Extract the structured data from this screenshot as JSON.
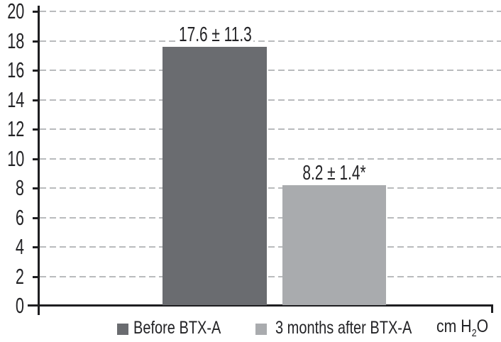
{
  "chart_data": {
    "type": "bar",
    "title": "",
    "xlabel": "",
    "ylabel": "",
    "unit_label": "cm H2O",
    "unit": {
      "prefix": "cm H",
      "sub": "2",
      "suffix": "O"
    },
    "ylim": [
      0,
      20
    ],
    "ytick_step": 2,
    "yticks": [
      0,
      2,
      4,
      6,
      8,
      10,
      12,
      14,
      16,
      18,
      20
    ],
    "grid": "horizontal dashed, on",
    "legend_position": "bottom",
    "categories": [
      "Before BTX-A",
      "3 months after BTX-A"
    ],
    "series": [
      {
        "name": "Before BTX-A",
        "value": 17.6,
        "sd": 11.3,
        "annotation": "17.6 ± 11.3",
        "color": "#6a6c70"
      },
      {
        "name": "3 months after BTX-A",
        "value": 8.2,
        "sd": 1.4,
        "annotation": "8.2 ± 1.4*",
        "color": "#a9abae"
      }
    ],
    "colors": {
      "bar_before": "#6a6c70",
      "bar_after": "#a9abae",
      "gridline": "#b9bbbd",
      "axis": "#1e1e21",
      "text": "#232326"
    }
  }
}
